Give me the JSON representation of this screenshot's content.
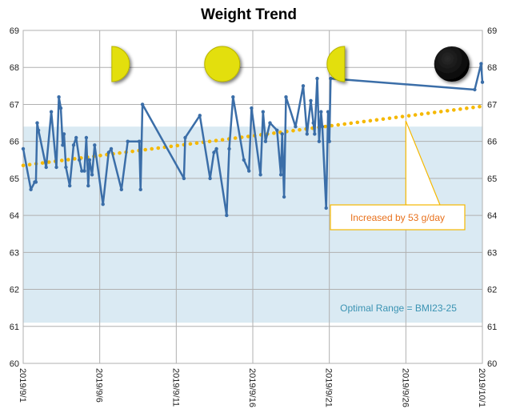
{
  "chart_data": {
    "type": "line",
    "title": "Weight Trend",
    "xlabel": "",
    "ylabel": "",
    "ylim": [
      60,
      69
    ],
    "yticks": [
      60,
      61,
      62,
      63,
      64,
      65,
      66,
      67,
      68,
      69
    ],
    "xlim": [
      "2019-09-01",
      "2019-10-01"
    ],
    "xtick_labels": [
      "2019/9/1",
      "2019/9/6",
      "2019/9/11",
      "2019/9/16",
      "2019/9/21",
      "2019/9/26",
      "2019/10/1"
    ],
    "grid": true,
    "optimal_range": {
      "low": 61.1,
      "high": 66.4,
      "label": "Optimal Range = BMI23-25"
    },
    "trend": {
      "start": 65.35,
      "end": 66.95,
      "annotation": "Increased by 53 g/day"
    },
    "series": [
      {
        "points": [
          [
            "2019-09-01 00:00",
            65.8
          ],
          [
            "2019-09-01 12:00",
            64.7
          ],
          [
            "2019-09-01 18:00",
            64.9
          ],
          [
            "2019-09-01 20:00",
            64.9
          ],
          [
            "2019-09-01 22:00",
            66.5
          ],
          [
            "2019-09-02 00:00",
            66.3
          ],
          [
            "2019-09-02 12:00",
            65.3
          ],
          [
            "2019-09-02 20:00",
            66.8
          ],
          [
            "2019-09-03 04:00",
            65.3
          ],
          [
            "2019-09-03 08:00",
            67.2
          ],
          [
            "2019-09-03 11:00",
            66.9
          ],
          [
            "2019-09-03 14:00",
            65.9
          ],
          [
            "2019-09-03 16:00",
            66.2
          ],
          [
            "2019-09-03 19:00",
            65.3
          ],
          [
            "2019-09-04 01:00",
            64.8
          ],
          [
            "2019-09-04 07:00",
            65.9
          ],
          [
            "2019-09-04 11:00",
            66.1
          ],
          [
            "2019-09-04 16:00",
            65.5
          ],
          [
            "2019-09-04 20:00",
            65.2
          ],
          [
            "2019-09-05 00:00",
            65.2
          ],
          [
            "2019-09-05 03:00",
            66.1
          ],
          [
            "2019-09-05 06:00",
            64.8
          ],
          [
            "2019-09-05 08:00",
            65.5
          ],
          [
            "2019-09-05 12:00",
            65.1
          ],
          [
            "2019-09-05 16:00",
            65.9
          ],
          [
            "2019-09-06 05:00",
            64.3
          ],
          [
            "2019-09-06 14:00",
            65.7
          ],
          [
            "2019-09-06 18:00",
            65.8
          ],
          [
            "2019-09-07 10:00",
            64.7
          ],
          [
            "2019-09-07 20:00",
            66.0
          ],
          [
            "2019-09-08 14:00",
            66.0
          ],
          [
            "2019-09-08 16:00",
            64.7
          ],
          [
            "2019-09-08 19:00",
            67.0
          ],
          [
            "2019-09-11 12:00",
            65.0
          ],
          [
            "2019-09-11 14:00",
            66.1
          ],
          [
            "2019-09-12 13:00",
            66.7
          ],
          [
            "2019-09-13 05:00",
            65.0
          ],
          [
            "2019-09-13 11:00",
            65.7
          ],
          [
            "2019-09-13 15:00",
            65.8
          ],
          [
            "2019-09-14 07:00",
            64.0
          ],
          [
            "2019-09-14 11:00",
            65.8
          ],
          [
            "2019-09-14 17:00",
            67.2
          ],
          [
            "2019-09-15 10:00",
            65.5
          ],
          [
            "2019-09-15 18:00",
            65.2
          ],
          [
            "2019-09-15 22:00",
            66.9
          ],
          [
            "2019-09-16 12:00",
            65.1
          ],
          [
            "2019-09-16 16:00",
            66.8
          ],
          [
            "2019-09-16 20:00",
            66.0
          ],
          [
            "2019-09-17 03:00",
            66.5
          ],
          [
            "2019-09-17 14:00",
            66.3
          ],
          [
            "2019-09-17 20:00",
            65.1
          ],
          [
            "2019-09-17 22:00",
            66.2
          ],
          [
            "2019-09-18 01:00",
            64.5
          ],
          [
            "2019-09-18 04:00",
            67.2
          ],
          [
            "2019-09-18 19:00",
            66.4
          ],
          [
            "2019-09-19 07:00",
            67.5
          ],
          [
            "2019-09-19 13:00",
            66.2
          ],
          [
            "2019-09-19 19:00",
            67.1
          ],
          [
            "2019-09-19 23:00",
            66.5
          ],
          [
            "2019-09-20 01:00",
            66.2
          ],
          [
            "2019-09-20 05:00",
            67.7
          ],
          [
            "2019-09-20 08:00",
            66.0
          ],
          [
            "2019-09-20 11:00",
            66.8
          ],
          [
            "2019-09-20 13:00",
            66.4
          ],
          [
            "2019-09-20 19:00",
            64.2
          ],
          [
            "2019-09-20 22:00",
            66.8
          ],
          [
            "2019-09-21 00:00",
            66.0
          ],
          [
            "2019-09-21 02:00",
            67.7
          ],
          [
            "2019-09-30 12:00",
            67.4
          ],
          [
            "2019-09-30 22:00",
            68.1
          ],
          [
            "2019-10-01 00:00",
            67.6
          ]
        ]
      }
    ],
    "moon_markers": [
      {
        "date": "2019-09-07",
        "phase": "first-quarter"
      },
      {
        "date": "2019-09-14",
        "phase": "full"
      },
      {
        "date": "2019-09-22",
        "phase": "last-quarter"
      },
      {
        "date": "2019-09-29",
        "phase": "new"
      }
    ],
    "colors": {
      "line": "#3b6ea8",
      "trend": "#f5b800",
      "band": "#daeaf3",
      "band_label": "#3a93b3",
      "annotation_text": "#e8711c",
      "annotation_border": "#f5b800",
      "moon_fill": "#e3df10",
      "moon_dark": "#000000",
      "grid": "#b0b0b0"
    }
  }
}
